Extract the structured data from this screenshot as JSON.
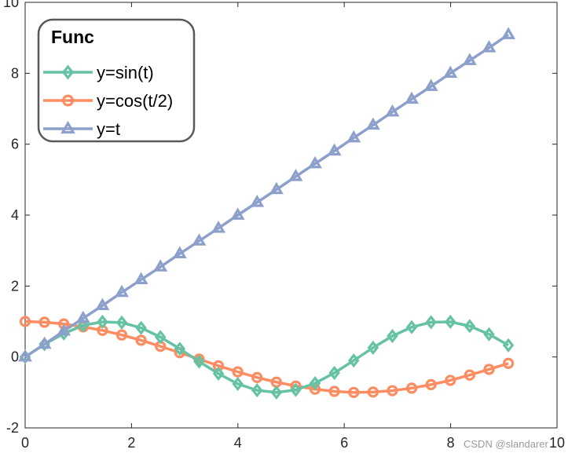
{
  "watermark": "CSDN @slandarer",
  "chart_data": {
    "type": "line",
    "title": "",
    "xlabel": "",
    "ylabel": "",
    "xlim": [
      0,
      10
    ],
    "ylim": [
      -2,
      10
    ],
    "xticks": [
      0,
      2,
      4,
      6,
      8,
      10
    ],
    "yticks": [
      -2,
      0,
      2,
      4,
      6,
      8,
      10
    ],
    "grid": false,
    "legend": {
      "title": "Func",
      "placement": "top-left",
      "entries": [
        "y=sin(t)",
        "y=cos(t/2)",
        "y=t"
      ]
    },
    "x": [
      0.0,
      0.3634,
      0.7268,
      1.0903,
      1.4537,
      1.8171,
      2.1805,
      2.5439,
      2.9074,
      3.2708,
      3.6342,
      3.9976,
      4.361,
      4.7245,
      5.0879,
      5.4513,
      5.8147,
      6.1781,
      6.5416,
      6.905,
      7.2684,
      7.6318,
      7.9952,
      8.3587,
      8.7221,
      9.0855
    ],
    "series": [
      {
        "name": "y=sin(t)",
        "color": "#66c2a5",
        "marker": "diamond",
        "values": [
          0.0,
          0.36,
          0.66,
          0.89,
          0.99,
          0.97,
          0.82,
          0.56,
          0.23,
          -0.13,
          -0.47,
          -0.76,
          -0.94,
          -1.0,
          -0.93,
          -0.74,
          -0.45,
          -0.1,
          0.26,
          0.59,
          0.84,
          0.98,
          0.99,
          0.87,
          0.64,
          0.33
        ]
      },
      {
        "name": "y=cos(t/2)",
        "color": "#fc8d62",
        "marker": "circle",
        "values": [
          1.0,
          0.98,
          0.93,
          0.85,
          0.75,
          0.62,
          0.47,
          0.3,
          0.12,
          -0.06,
          -0.25,
          -0.42,
          -0.58,
          -0.71,
          -0.82,
          -0.91,
          -0.97,
          -1.0,
          -0.99,
          -0.95,
          -0.88,
          -0.78,
          -0.66,
          -0.51,
          -0.35,
          -0.18
        ]
      },
      {
        "name": "y=t",
        "color": "#8da0cb",
        "marker": "triangle",
        "values": [
          0.0,
          0.36,
          0.73,
          1.09,
          1.45,
          1.82,
          2.18,
          2.54,
          2.91,
          3.27,
          3.63,
          4.0,
          4.36,
          4.72,
          5.09,
          5.45,
          5.81,
          6.18,
          6.54,
          6.91,
          7.27,
          7.63,
          8.0,
          8.36,
          8.72,
          9.09
        ]
      }
    ]
  }
}
